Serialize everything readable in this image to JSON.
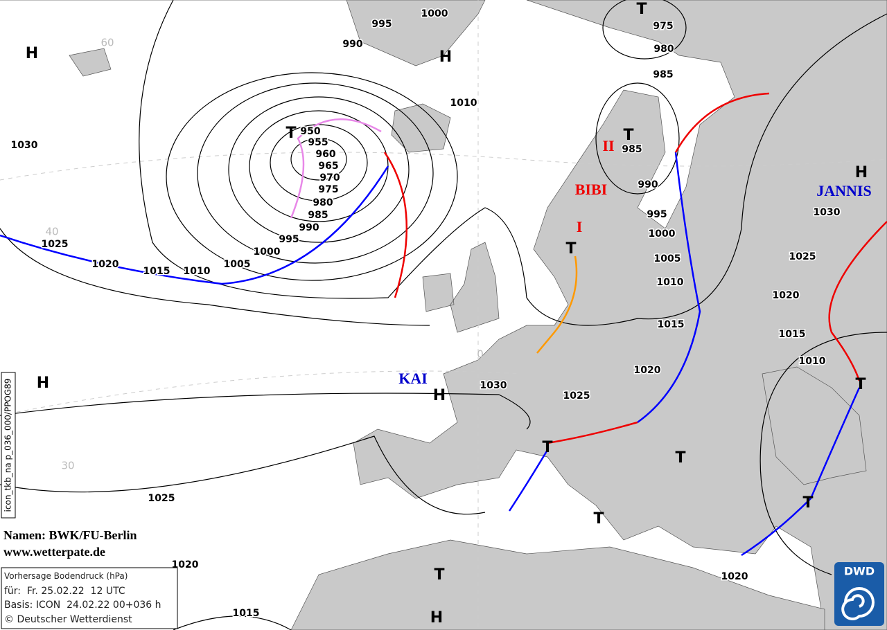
{
  "isobar_labels": [
    1030,
    995,
    990,
    1000,
    1010,
    950,
    955,
    960,
    965,
    970,
    975,
    980,
    985,
    990,
    995,
    1000,
    1005,
    1010,
    1015,
    1020,
    1025,
    975,
    980,
    985,
    985,
    990,
    995,
    1000,
    1005,
    1010,
    1015,
    1020,
    1025,
    1030,
    1030,
    1025,
    1020,
    1015,
    1010,
    1025,
    1020,
    1015,
    1020
  ],
  "pressure_centers": [
    "H",
    "H",
    "T",
    "T",
    "T",
    "H",
    "T",
    "H",
    "H",
    "T",
    "T",
    "T",
    "T",
    "T",
    "T",
    "H"
  ],
  "system_names": [
    "II",
    "BIBI",
    "I",
    "JANNIS",
    "KAI"
  ],
  "grid_labels": [
    "60",
    "40",
    "30",
    "0"
  ],
  "credits": [
    "Namen: BWK/FU-Berlin",
    "www.wetterpate.de"
  ],
  "info_box": [
    "Vorhersage Bodendruck (hPa)",
    "für:  Fr. 25.02.22  12 UTC",
    "Basis: ICON  24.02.22 00+036 h",
    "© Deutscher Wetterdienst"
  ],
  "side_label": "icon_tkb_na p_036_000/PPOG89",
  "logo": "DWD"
}
